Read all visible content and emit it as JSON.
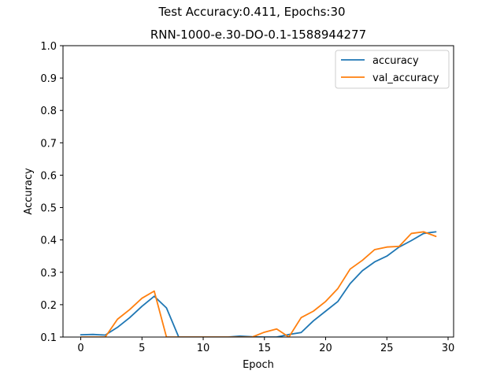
{
  "figure": {
    "suptitle": "Test Accuracy:0.411, Epochs:30"
  },
  "chart_data": {
    "type": "line",
    "title": "RNN-1000-e.30-DO-0.1-1588944277",
    "xlabel": "Epoch",
    "ylabel": "Accuracy",
    "xlim": [
      -1.45,
      30.45
    ],
    "ylim": [
      0.1,
      1.0
    ],
    "xticks": [
      0,
      5,
      10,
      15,
      20,
      25,
      30
    ],
    "xtick_labels": [
      "0",
      "5",
      "10",
      "15",
      "20",
      "25",
      "30"
    ],
    "yticks": [
      0.1,
      0.2,
      0.3,
      0.4,
      0.5,
      0.6,
      0.7,
      0.8,
      0.9,
      1.0
    ],
    "ytick_labels": [
      "0.1",
      "0.2",
      "0.3",
      "0.4",
      "0.5",
      "0.6",
      "0.7",
      "0.8",
      "0.9",
      "1.0"
    ],
    "grid": false,
    "legend_position": "top-right",
    "x": [
      0,
      1,
      2,
      3,
      4,
      5,
      6,
      7,
      8,
      9,
      10,
      11,
      12,
      13,
      14,
      15,
      16,
      17,
      18,
      19,
      20,
      21,
      22,
      23,
      24,
      25,
      26,
      27,
      28,
      29
    ],
    "series": [
      {
        "name": "accuracy",
        "color": "#1f77b4",
        "values": [
          0.107,
          0.108,
          0.106,
          0.13,
          0.16,
          0.195,
          0.226,
          0.19,
          0.1,
          0.1,
          0.1,
          0.1,
          0.1,
          0.103,
          0.101,
          0.1,
          0.1,
          0.108,
          0.114,
          0.15,
          0.18,
          0.21,
          0.265,
          0.305,
          0.332,
          0.35,
          0.378,
          0.398,
          0.42,
          0.425
        ]
      },
      {
        "name": "val_accuracy",
        "color": "#ff7f0e",
        "values": [
          0.1,
          0.1,
          0.1,
          0.155,
          0.185,
          0.22,
          0.242,
          0.1,
          0.1,
          0.1,
          0.1,
          0.1,
          0.1,
          0.1,
          0.1,
          0.115,
          0.125,
          0.1,
          0.16,
          0.18,
          0.21,
          0.25,
          0.31,
          0.337,
          0.37,
          0.378,
          0.38,
          0.42,
          0.425,
          0.411
        ]
      }
    ]
  }
}
